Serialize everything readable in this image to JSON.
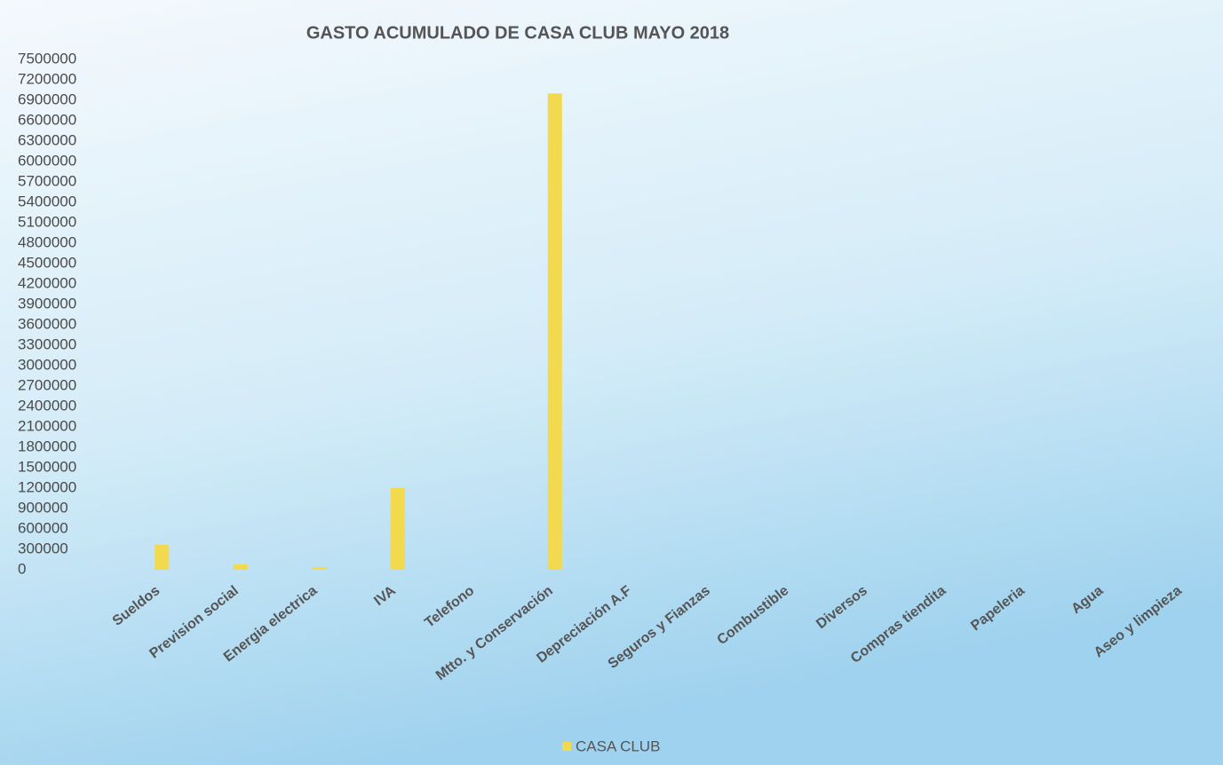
{
  "chart_data": {
    "type": "bar",
    "title": "GASTO ACUMULADO DE CASA CLUB MAYO 2018",
    "categories": [
      "Sueldos",
      "Prevision social",
      "Energia electrica",
      "IVA",
      "Telefono",
      "Mtto. y Conservación",
      "Depreciación A.F",
      "Seguros y Fianzas",
      "Combustible",
      "Diversos",
      "Compras tiendita",
      "Papeleria",
      "Agua",
      "Aseo y limpieza"
    ],
    "series": [
      {
        "name": "CASA CLUB",
        "color": "#f2d94e",
        "values": [
          365000,
          80000,
          40000,
          1200000,
          0,
          7000000,
          10000,
          0,
          0,
          0,
          0,
          0,
          0,
          0
        ]
      }
    ],
    "ylim": [
      0,
      7500000
    ],
    "yticks": [
      0,
      300000,
      600000,
      900000,
      1200000,
      1500000,
      1800000,
      2100000,
      2400000,
      2700000,
      3000000,
      3300000,
      3600000,
      3900000,
      4200000,
      4500000,
      4800000,
      5100000,
      5400000,
      5700000,
      6000000,
      6300000,
      6600000,
      6900000,
      7200000,
      7500000
    ],
    "grid": false,
    "legend": "bottom"
  }
}
